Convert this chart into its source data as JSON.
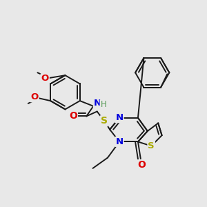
{
  "bg_color": "#e8e8e8",
  "bond_color": "#1a1a1a",
  "bond_width": 1.4,
  "atom_colors": {
    "N": "#0000dd",
    "O": "#dd0000",
    "S_ring": "#aaaa00",
    "S_link": "#aaaa00",
    "H": "#559955",
    "C": "#1a1a1a"
  },
  "font_size": 8.5,
  "fig_size": [
    3.0,
    3.0
  ],
  "dpi": 100
}
